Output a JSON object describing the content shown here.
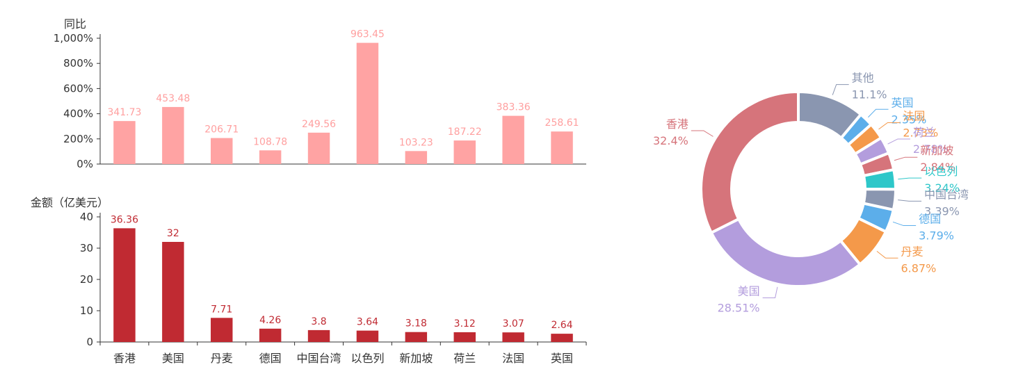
{
  "chart_data": [
    {
      "type": "bar",
      "ylabel": "同比",
      "categories": [
        "香港",
        "美国",
        "丹麦",
        "德国",
        "中国台湾",
        "以色列",
        "新加坡",
        "荷兰",
        "法国",
        "英国"
      ],
      "values": [
        341.73,
        453.48,
        206.71,
        108.78,
        249.56,
        963.45,
        103.23,
        187.22,
        383.36,
        258.61
      ],
      "value_unit": "%",
      "yticks": [
        "0%",
        "200%",
        "400%",
        "600%",
        "800%",
        "1,000%"
      ],
      "ylim": [
        0,
        1000
      ],
      "color": "#ffa3a3",
      "label_color": "#ff9f9f"
    },
    {
      "type": "bar",
      "ylabel": "金额（亿美元）",
      "categories": [
        "香港",
        "美国",
        "丹麦",
        "德国",
        "中国台湾",
        "以色列",
        "新加坡",
        "荷兰",
        "法国",
        "英国"
      ],
      "values": [
        36.36,
        32,
        7.71,
        4.26,
        3.8,
        3.64,
        3.18,
        3.12,
        3.07,
        2.64
      ],
      "yticks": [
        "0",
        "10",
        "20",
        "30",
        "40"
      ],
      "ylim": [
        0,
        40
      ],
      "color": "#c02a32",
      "label_color": "#c02a32"
    },
    {
      "type": "pie",
      "donut": true,
      "slices": [
        {
          "label": "其他",
          "value": 11.1,
          "display": "11.1%",
          "color": "#8a96b0",
          "label_color": "#8a96b0"
        },
        {
          "label": "英国",
          "value": 2.35,
          "display": "2.35%",
          "color": "#5caeea",
          "label_color": "#5caeea"
        },
        {
          "label": "法国",
          "value": 2.73,
          "display": "2.73%",
          "color": "#f4994a",
          "label_color": "#f4994a"
        },
        {
          "label": "荷兰",
          "value": 2.78,
          "display": "2.78%",
          "color": "#b39ddd",
          "label_color": "#b39ddd"
        },
        {
          "label": "新加坡",
          "value": 2.84,
          "display": "2.84%",
          "color": "#d6747b",
          "label_color": "#d6747b"
        },
        {
          "label": "以色列",
          "value": 3.24,
          "display": "3.24%",
          "color": "#2ec7c9",
          "label_color": "#2ec7c9"
        },
        {
          "label": "中国台湾",
          "value": 3.39,
          "display": "3.39%",
          "color": "#8a96b0",
          "label_color": "#8a96b0"
        },
        {
          "label": "德国",
          "value": 3.79,
          "display": "3.79%",
          "color": "#5caeea",
          "label_color": "#5caeea"
        },
        {
          "label": "丹麦",
          "value": 6.87,
          "display": "6.87%",
          "color": "#f4994a",
          "label_color": "#f4994a"
        },
        {
          "label": "美国",
          "value": 28.51,
          "display": "28.51%",
          "color": "#b39ddd",
          "label_color": "#b39ddd"
        },
        {
          "label": "香港",
          "value": 32.4,
          "display": "32.4%",
          "color": "#d6747b",
          "label_color": "#d6747b"
        }
      ]
    }
  ]
}
